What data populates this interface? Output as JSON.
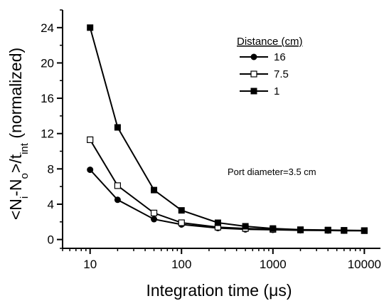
{
  "chart_data": {
    "type": "line",
    "xscale": "log",
    "xlabel": "Integration time (μs)",
    "ylabel_parts": {
      "open": "<N",
      "sub_i": "i",
      "minus": "-N",
      "sub_o": "o",
      "mid": ">/t",
      "sub_int": "int",
      "tail": " (normalized)"
    },
    "xlim": [
      5,
      15000
    ],
    "ylim": [
      -1,
      26
    ],
    "x_ticks": [
      10,
      100,
      1000,
      10000
    ],
    "x_tick_labels": [
      "10",
      "100",
      "1000",
      "10000"
    ],
    "y_ticks": [
      0,
      4,
      8,
      12,
      16,
      20,
      24
    ],
    "y_tick_labels": [
      "0",
      "4",
      "8",
      "12",
      "16",
      "20",
      "24"
    ],
    "grid": false,
    "legend": {
      "title": "Distance (cm)",
      "placement": "top-right"
    },
    "annotation": "Port diameter=3.5 cm",
    "series": [
      {
        "name": "16",
        "marker": "filled-circle",
        "x": [
          10,
          20,
          50,
          100,
          250,
          500,
          1000,
          2000,
          4000,
          6000,
          10000
        ],
        "y": [
          7.9,
          4.5,
          2.3,
          1.7,
          1.3,
          1.15,
          1.1,
          1.05,
          1.02,
          1.0,
          1.0
        ]
      },
      {
        "name": "7.5",
        "marker": "open-square",
        "x": [
          10,
          20,
          50,
          100,
          250,
          500,
          1000,
          2000,
          4000,
          6000,
          10000
        ],
        "y": [
          11.3,
          6.1,
          3.0,
          1.9,
          1.4,
          1.25,
          1.15,
          1.08,
          1.05,
          1.02,
          1.0
        ]
      },
      {
        "name": "1",
        "marker": "filled-square",
        "x": [
          10,
          20,
          50,
          100,
          250,
          500,
          1000,
          2000,
          4000,
          6000,
          10000
        ],
        "y": [
          24.0,
          12.7,
          5.6,
          3.3,
          1.9,
          1.5,
          1.25,
          1.12,
          1.08,
          1.05,
          1.02
        ]
      }
    ]
  }
}
